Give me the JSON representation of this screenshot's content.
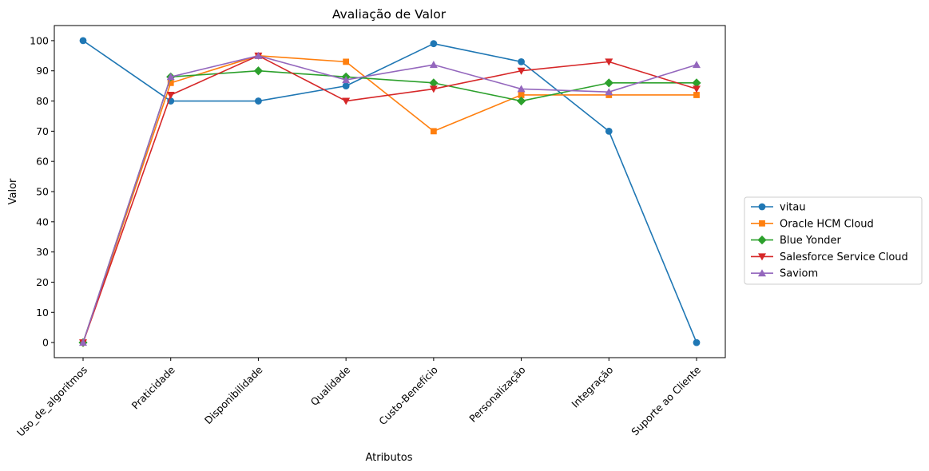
{
  "chart_data": {
    "type": "line",
    "title": "Avaliação de Valor",
    "xlabel": "Atributos",
    "ylabel": "Valor",
    "categories": [
      "Uso_de_algoritmos",
      "Praticidade",
      "Disponibilidade",
      "Qualidade",
      "Custo-Benefício",
      "Personalização",
      "Integração",
      "Suporte ao Cliente"
    ],
    "ylim": [
      -5,
      105
    ],
    "yticks": [
      0,
      10,
      20,
      30,
      40,
      50,
      60,
      70,
      80,
      90,
      100
    ],
    "grid": false,
    "legend_position": "right",
    "series": [
      {
        "name": "vitau",
        "color": "#1f77b4",
        "marker": "circle",
        "values": [
          100,
          80,
          80,
          85,
          99,
          93,
          70,
          0
        ]
      },
      {
        "name": "Oracle HCM Cloud",
        "color": "#ff7f0e",
        "marker": "square",
        "values": [
          0,
          86,
          95,
          93,
          70,
          82,
          82,
          82
        ]
      },
      {
        "name": "Blue Yonder",
        "color": "#2ca02c",
        "marker": "diamond",
        "values": [
          0,
          88,
          90,
          88,
          86,
          80,
          86,
          86
        ]
      },
      {
        "name": "Salesforce Service Cloud",
        "color": "#d62728",
        "marker": "triangle-down",
        "values": [
          0,
          82,
          95,
          80,
          84,
          90,
          93,
          84
        ]
      },
      {
        "name": "Saviom",
        "color": "#9467bd",
        "marker": "triangle-up",
        "values": [
          0,
          88,
          95,
          87,
          92,
          84,
          83,
          92
        ]
      }
    ]
  }
}
